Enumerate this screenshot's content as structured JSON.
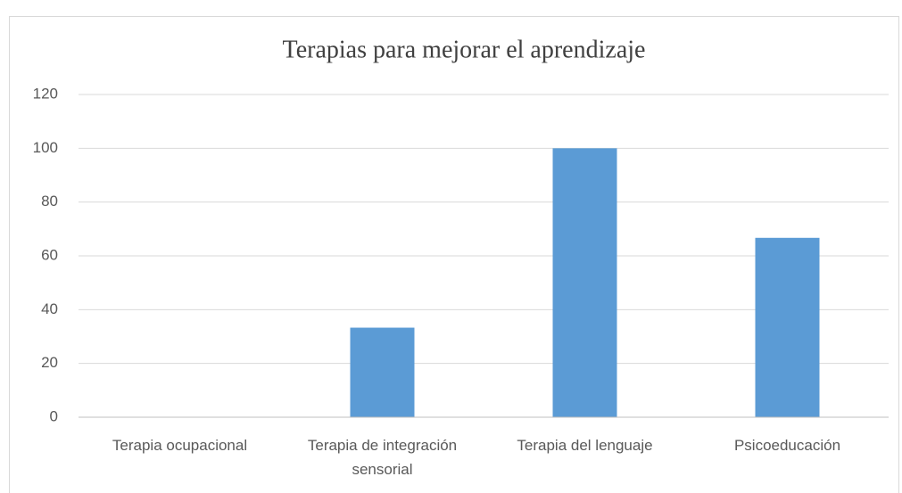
{
  "chart_data": {
    "type": "bar",
    "title": "Terapias para mejorar el aprendizaje",
    "categories": [
      "Terapia ocupacional",
      "Terapia de integración sensorial",
      "Terapia del lenguaje",
      "Psicoeducación"
    ],
    "values": [
      0,
      33.3,
      100,
      66.7
    ],
    "color": "#5b9bd5",
    "ylim": [
      0,
      120
    ],
    "yticks": [
      0,
      20,
      40,
      60,
      80,
      100,
      120
    ],
    "grid": true
  }
}
